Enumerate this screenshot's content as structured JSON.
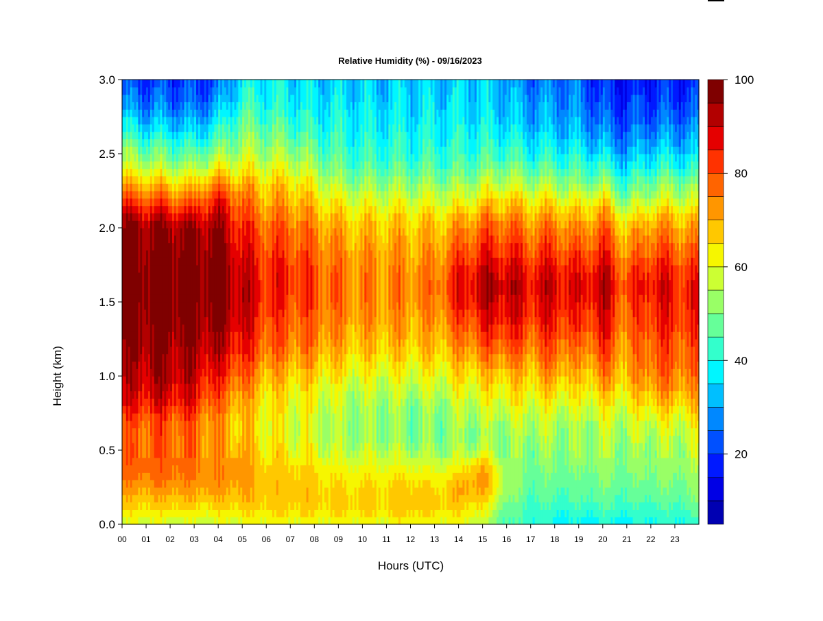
{
  "chart_data": {
    "type": "heatmap",
    "title": "Relative Humidity (%) - 09/16/2023",
    "xlabel": "Hours (UTC)",
    "ylabel": "Height (km)",
    "x_ticks": [
      "00",
      "01",
      "02",
      "03",
      "04",
      "05",
      "06",
      "07",
      "08",
      "09",
      "10",
      "11",
      "12",
      "13",
      "14",
      "15",
      "16",
      "17",
      "18",
      "19",
      "20",
      "21",
      "22",
      "23"
    ],
    "y_ticks": [
      "0.0",
      "0.5",
      "1.0",
      "1.5",
      "2.0",
      "2.5",
      "3.0"
    ],
    "x_range": [
      0,
      24
    ],
    "y_range": [
      0,
      3.0
    ],
    "colorbar": {
      "range": [
        5,
        100
      ],
      "tick_labels": [
        "20",
        "40",
        "60",
        "80",
        "100"
      ],
      "tick_values": [
        20,
        40,
        60,
        80,
        100
      ],
      "levels": [
        5,
        10,
        15,
        20,
        25,
        30,
        35,
        40,
        45,
        50,
        55,
        60,
        65,
        70,
        75,
        80,
        85,
        90,
        95,
        100
      ],
      "colors": [
        "#00007f",
        "#0000b2",
        "#0000e5",
        "#0019ff",
        "#0050ff",
        "#0088ff",
        "#00bfff",
        "#00f6ff",
        "#33ffcc",
        "#66ff99",
        "#99ff66",
        "#ccff33",
        "#f6f600",
        "#ffc800",
        "#ff9600",
        "#ff6400",
        "#ff3200",
        "#e50000",
        "#b20000",
        "#7f0000"
      ]
    },
    "rh_profiles_by_hour": {
      "heights_km": [
        0.0,
        0.1,
        0.2,
        0.3,
        0.4,
        0.5,
        0.6,
        0.7,
        0.8,
        0.9,
        1.0,
        1.1,
        1.2,
        1.3,
        1.4,
        1.5,
        1.6,
        1.7,
        1.8,
        1.9,
        2.0,
        2.1,
        2.2,
        2.3,
        2.4,
        2.5,
        2.6,
        2.7,
        2.8,
        2.9,
        3.0
      ],
      "hours": [
        0,
        1,
        2,
        3,
        4,
        5,
        6,
        7,
        8,
        9,
        10,
        11,
        12,
        13,
        14,
        15,
        16,
        17,
        18,
        19,
        20,
        21,
        22,
        23,
        24
      ],
      "values": [
        [
          58,
          64,
          70,
          74,
          78,
          78,
          76,
          78,
          84,
          88,
          90,
          92,
          94,
          96,
          98,
          99,
          99,
          99,
          98,
          97,
          96,
          90,
          80,
          70,
          60,
          52,
          45,
          38,
          30,
          25,
          22
        ],
        [
          58,
          65,
          70,
          75,
          78,
          78,
          78,
          80,
          86,
          90,
          92,
          94,
          96,
          97,
          98,
          99,
          99,
          99,
          98,
          97,
          96,
          88,
          78,
          68,
          58,
          50,
          42,
          34,
          28,
          24,
          20
        ],
        [
          58,
          65,
          70,
          76,
          78,
          78,
          78,
          80,
          86,
          90,
          93,
          94,
          96,
          97,
          98,
          99,
          99,
          99,
          98,
          97,
          96,
          88,
          78,
          68,
          56,
          48,
          40,
          34,
          27,
          24,
          20
        ],
        [
          58,
          64,
          70,
          74,
          76,
          76,
          76,
          78,
          84,
          88,
          90,
          92,
          94,
          95,
          97,
          98,
          98,
          98,
          97,
          95,
          94,
          86,
          76,
          66,
          55,
          46,
          38,
          32,
          26,
          22,
          20
        ],
        [
          58,
          64,
          70,
          74,
          74,
          72,
          72,
          72,
          76,
          80,
          84,
          88,
          92,
          94,
          96,
          97,
          98,
          98,
          98,
          96,
          95,
          90,
          84,
          74,
          62,
          52,
          44,
          38,
          32,
          26,
          22
        ],
        [
          60,
          66,
          70,
          72,
          72,
          70,
          68,
          68,
          70,
          74,
          78,
          82,
          86,
          88,
          90,
          92,
          92,
          90,
          88,
          86,
          84,
          80,
          76,
          70,
          62,
          56,
          52,
          48,
          44,
          40,
          38
        ],
        [
          60,
          66,
          68,
          68,
          66,
          64,
          62,
          62,
          64,
          66,
          70,
          74,
          78,
          80,
          82,
          84,
          84,
          84,
          82,
          80,
          78,
          74,
          70,
          66,
          60,
          54,
          50,
          46,
          42,
          40,
          38
        ],
        [
          60,
          66,
          68,
          68,
          66,
          62,
          60,
          60,
          62,
          64,
          68,
          72,
          76,
          78,
          80,
          82,
          84,
          84,
          82,
          80,
          78,
          74,
          70,
          66,
          60,
          54,
          48,
          44,
          40,
          38,
          36
        ],
        [
          60,
          66,
          68,
          66,
          64,
          60,
          58,
          58,
          60,
          62,
          66,
          70,
          74,
          76,
          78,
          80,
          80,
          80,
          78,
          76,
          74,
          70,
          66,
          60,
          54,
          48,
          44,
          40,
          38,
          36,
          34
        ],
        [
          60,
          66,
          66,
          64,
          60,
          56,
          54,
          54,
          56,
          58,
          62,
          66,
          70,
          72,
          74,
          76,
          76,
          76,
          74,
          72,
          70,
          66,
          60,
          54,
          48,
          44,
          42,
          40,
          38,
          36,
          35
        ],
        [
          60,
          66,
          66,
          64,
          60,
          56,
          52,
          52,
          54,
          56,
          60,
          64,
          68,
          70,
          72,
          74,
          74,
          74,
          72,
          70,
          68,
          64,
          58,
          52,
          46,
          42,
          40,
          38,
          36,
          35,
          34
        ],
        [
          60,
          66,
          66,
          64,
          60,
          56,
          52,
          52,
          54,
          56,
          60,
          64,
          68,
          70,
          72,
          74,
          74,
          74,
          72,
          70,
          68,
          64,
          58,
          52,
          46,
          42,
          40,
          38,
          36,
          34,
          34
        ],
        [
          62,
          68,
          68,
          66,
          60,
          54,
          50,
          50,
          52,
          56,
          60,
          64,
          68,
          70,
          72,
          74,
          74,
          74,
          72,
          70,
          68,
          64,
          58,
          52,
          46,
          42,
          40,
          38,
          36,
          35,
          34
        ],
        [
          60,
          66,
          66,
          62,
          58,
          52,
          50,
          50,
          52,
          56,
          60,
          64,
          68,
          70,
          72,
          74,
          76,
          74,
          72,
          70,
          68,
          64,
          58,
          52,
          46,
          42,
          40,
          38,
          36,
          35,
          34
        ],
        [
          60,
          66,
          70,
          68,
          60,
          54,
          52,
          54,
          56,
          60,
          64,
          68,
          72,
          76,
          80,
          84,
          86,
          84,
          80,
          76,
          72,
          66,
          58,
          52,
          46,
          42,
          40,
          38,
          36,
          35,
          34
        ],
        [
          55,
          62,
          70,
          74,
          70,
          56,
          52,
          54,
          58,
          62,
          66,
          72,
          78,
          82,
          86,
          90,
          92,
          90,
          86,
          82,
          78,
          72,
          64,
          56,
          48,
          44,
          40,
          38,
          36,
          35,
          34
        ],
        [
          45,
          48,
          52,
          54,
          52,
          50,
          52,
          56,
          60,
          64,
          68,
          74,
          80,
          84,
          88,
          90,
          92,
          90,
          86,
          82,
          78,
          72,
          66,
          58,
          50,
          44,
          40,
          36,
          34,
          32,
          30
        ],
        [
          42,
          44,
          46,
          48,
          50,
          52,
          54,
          56,
          60,
          64,
          68,
          72,
          76,
          80,
          84,
          86,
          88,
          86,
          82,
          78,
          74,
          70,
          62,
          54,
          46,
          40,
          36,
          32,
          30,
          28,
          26
        ],
        [
          38,
          42,
          46,
          48,
          50,
          52,
          54,
          56,
          60,
          66,
          72,
          76,
          80,
          84,
          86,
          88,
          90,
          88,
          84,
          80,
          76,
          70,
          62,
          54,
          46,
          40,
          36,
          32,
          30,
          28,
          26
        ],
        [
          38,
          42,
          46,
          48,
          50,
          52,
          52,
          54,
          58,
          62,
          66,
          70,
          74,
          78,
          82,
          84,
          86,
          84,
          80,
          76,
          72,
          66,
          58,
          50,
          44,
          38,
          34,
          30,
          28,
          26,
          24
        ],
        [
          40,
          44,
          48,
          50,
          52,
          54,
          56,
          58,
          62,
          68,
          74,
          78,
          82,
          86,
          88,
          90,
          92,
          90,
          86,
          82,
          78,
          72,
          62,
          52,
          44,
          36,
          30,
          26,
          22,
          20,
          18
        ],
        [
          38,
          42,
          46,
          48,
          50,
          52,
          54,
          56,
          60,
          64,
          68,
          70,
          72,
          74,
          76,
          78,
          80,
          78,
          74,
          70,
          66,
          58,
          50,
          42,
          36,
          30,
          26,
          22,
          20,
          18,
          16
        ],
        [
          40,
          44,
          48,
          50,
          52,
          54,
          56,
          60,
          66,
          72,
          76,
          78,
          80,
          82,
          84,
          86,
          88,
          86,
          82,
          78,
          74,
          66,
          58,
          50,
          42,
          36,
          30,
          26,
          22,
          20,
          18
        ],
        [
          40,
          44,
          48,
          50,
          52,
          54,
          56,
          60,
          66,
          72,
          76,
          78,
          80,
          82,
          84,
          86,
          86,
          84,
          80,
          76,
          72,
          66,
          58,
          50,
          42,
          36,
          30,
          26,
          22,
          20,
          18
        ],
        [
          42,
          46,
          50,
          52,
          54,
          56,
          58,
          62,
          66,
          70,
          74,
          76,
          78,
          80,
          82,
          84,
          84,
          82,
          78,
          74,
          70,
          64,
          56,
          48,
          40,
          34,
          30,
          26,
          22,
          20,
          18
        ]
      ]
    }
  }
}
